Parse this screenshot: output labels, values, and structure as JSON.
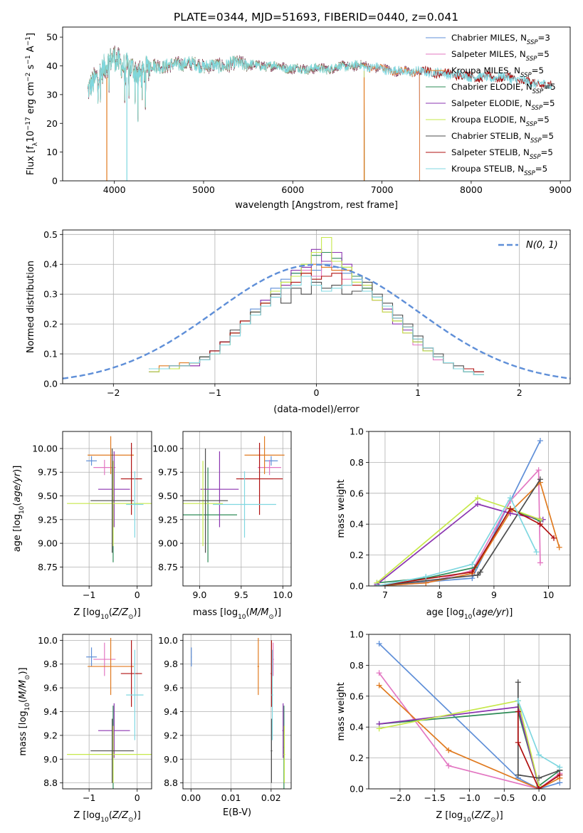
{
  "figure": {
    "title": "PLATE=0344, MJD=51693, FIBERID=0440, z=0.041"
  },
  "colors": {
    "Chabrier MILES": "#5f8fd8",
    "Salpeter MILES": "#e377c2",
    "Kroupa MILES": "#e07a1f",
    "Chabrier ELODIE": "#2e8b57",
    "Salpeter ELODIE": "#8b34b0",
    "Kroupa ELODIE": "#c6e84a",
    "Chabrier STELIB": "#4d4d4d",
    "Salpeter STELIB": "#b01010",
    "Kroupa STELIB": "#7fd7e0",
    "normal": "#5f8fd8",
    "grid": "#b0b0b0"
  },
  "chart_data": [
    {
      "id": "spectrum",
      "type": "line",
      "xlabel": "wavelength [Angstrom, rest frame]",
      "ylabel": "Flux [f_λ 10^-17 erg cm^-2 s^-1 A^-1]",
      "xlim": [
        3420,
        9110
      ],
      "ylim": [
        0,
        53.5
      ],
      "xticks": [
        4000,
        5000,
        6000,
        7000,
        8000,
        9000
      ],
      "yticks": [
        0,
        10,
        20,
        30,
        40,
        50
      ],
      "grid": false,
      "legend_position": "right",
      "legend": [
        {
          "model": "Chabrier MILES",
          "label": "Chabrier MILES, N",
          "sub": "SSP",
          "n": "=3"
        },
        {
          "model": "Salpeter MILES",
          "label": "Salpeter MILES, N",
          "sub": "SSP",
          "n": "=5"
        },
        {
          "model": "Kroupa MILES",
          "label": "Kroupa MILES, N",
          "sub": "SSP",
          "n": "=5"
        },
        {
          "model": "Chabrier ELODIE",
          "label": "Chabrier ELODIE, N",
          "sub": "SSP",
          "n": "=5"
        },
        {
          "model": "Salpeter ELODIE",
          "label": "Salpeter ELODIE, N",
          "sub": "SSP",
          "n": "=5"
        },
        {
          "model": "Kroupa ELODIE",
          "label": "Kroupa ELODIE, N",
          "sub": "SSP",
          "n": "=5"
        },
        {
          "model": "Chabrier STELIB",
          "label": "Chabrier STELIB, N",
          "sub": "SSP",
          "n": "=5"
        },
        {
          "model": "Salpeter STELIB",
          "label": "Salpeter STELIB, N",
          "sub": "SSP",
          "n": "=5"
        },
        {
          "model": "Kroupa STELIB",
          "label": "Kroupa STELIB, N",
          "sub": "SSP",
          "n": "=5"
        }
      ],
      "spectrum_anchors": {
        "wavelength": [
          3700,
          3800,
          3900,
          4000,
          4100,
          4200,
          4300,
          4400,
          4600,
          4800,
          5000,
          5200,
          5400,
          5600,
          5800,
          6000,
          6200,
          6400,
          6600,
          6800,
          7000,
          7200,
          7500,
          7800,
          8100,
          8400,
          8700,
          8900
        ],
        "flux": [
          31,
          36,
          40,
          43,
          40,
          39,
          37,
          40,
          40,
          41,
          40,
          40,
          41,
          40,
          40,
          39,
          39,
          39,
          40,
          40,
          39,
          38,
          38,
          37,
          36,
          36,
          34,
          33
        ]
      },
      "model_ranges": {
        "Chabrier MILES": [
          3700,
          7420
        ],
        "Salpeter MILES": [
          3700,
          7420
        ],
        "Kroupa MILES": [
          3700,
          7420
        ],
        "Chabrier ELODIE": [
          3700,
          6800
        ],
        "Salpeter ELODIE": [
          3700,
          6800
        ],
        "Kroupa ELODIE": [
          3700,
          6800
        ],
        "Chabrier STELIB": [
          3700,
          8900
        ],
        "Salpeter STELIB": [
          3700,
          8900
        ],
        "Kroupa STELIB": [
          3700,
          8900
        ]
      }
    },
    {
      "id": "residual-histogram",
      "type": "line",
      "xlabel": "(data-model)/error",
      "ylabel": "Normed distribution",
      "xlim": [
        -2.5,
        2.5
      ],
      "ylim": [
        0,
        0.515
      ],
      "xticks": [
        -2,
        -1,
        0,
        1,
        2
      ],
      "yticks": [
        0.0,
        0.1,
        0.2,
        0.3,
        0.4,
        0.5
      ],
      "grid": true,
      "legend_position": "top-right",
      "normal_label": "N(0, 1)",
      "bin_width": 0.1,
      "series": [
        {
          "model": "Chabrier MILES",
          "values": [
            0.05,
            0.05,
            0.06,
            0.06,
            0.07,
            0.09,
            0.11,
            0.14,
            0.17,
            0.21,
            0.25,
            0.28,
            0.32,
            0.35,
            0.37,
            0.39,
            0.38,
            0.4,
            0.39,
            0.37,
            0.35,
            0.32,
            0.29,
            0.25,
            0.22,
            0.18,
            0.15,
            0.12,
            0.09,
            0.07,
            0.05,
            0.04,
            0.03
          ]
        },
        {
          "model": "Salpeter MILES",
          "values": [
            0.04,
            0.05,
            0.05,
            0.06,
            0.06,
            0.08,
            0.1,
            0.13,
            0.16,
            0.2,
            0.24,
            0.27,
            0.31,
            0.34,
            0.36,
            0.38,
            0.36,
            0.41,
            0.38,
            0.35,
            0.36,
            0.31,
            0.28,
            0.24,
            0.21,
            0.17,
            0.13,
            0.11,
            0.08,
            0.07,
            0.05,
            0.04,
            0.03
          ]
        },
        {
          "model": "Kroupa MILES",
          "values": [
            0.05,
            0.06,
            0.06,
            0.07,
            0.07,
            0.09,
            0.1,
            0.13,
            0.17,
            0.21,
            0.24,
            0.27,
            0.3,
            0.33,
            0.36,
            0.37,
            0.4,
            0.39,
            0.38,
            0.38,
            0.34,
            0.32,
            0.28,
            0.26,
            0.21,
            0.19,
            0.15,
            0.12,
            0.09,
            0.07,
            0.05,
            0.04,
            0.03
          ]
        },
        {
          "model": "Chabrier ELODIE",
          "values": [
            0.04,
            0.05,
            0.05,
            0.06,
            0.07,
            0.09,
            0.11,
            0.14,
            0.17,
            0.2,
            0.23,
            0.27,
            0.3,
            0.34,
            0.37,
            0.4,
            0.43,
            0.44,
            0.42,
            0.39,
            0.36,
            0.32,
            0.29,
            0.25,
            0.21,
            0.18,
            0.14,
            0.11,
            0.09,
            0.07,
            0.05,
            0.04,
            0.03
          ]
        },
        {
          "model": "Salpeter ELODIE",
          "values": [
            0.04,
            0.05,
            0.05,
            0.06,
            0.06,
            0.08,
            0.11,
            0.14,
            0.17,
            0.21,
            0.24,
            0.28,
            0.3,
            0.33,
            0.38,
            0.39,
            0.45,
            0.41,
            0.44,
            0.4,
            0.35,
            0.33,
            0.28,
            0.25,
            0.2,
            0.18,
            0.14,
            0.11,
            0.09,
            0.07,
            0.05,
            0.04,
            0.03
          ]
        },
        {
          "model": "Kroupa ELODIE",
          "values": [
            0.04,
            0.05,
            0.05,
            0.06,
            0.07,
            0.08,
            0.1,
            0.13,
            0.17,
            0.21,
            0.24,
            0.27,
            0.31,
            0.34,
            0.36,
            0.4,
            0.44,
            0.49,
            0.41,
            0.39,
            0.34,
            0.33,
            0.28,
            0.24,
            0.21,
            0.17,
            0.14,
            0.11,
            0.09,
            0.07,
            0.05,
            0.04,
            0.03
          ]
        },
        {
          "model": "Chabrier STELIB",
          "values": [
            0.05,
            0.05,
            0.06,
            0.06,
            0.07,
            0.09,
            0.11,
            0.14,
            0.18,
            0.21,
            0.24,
            0.26,
            0.3,
            0.27,
            0.32,
            0.3,
            0.34,
            0.32,
            0.33,
            0.3,
            0.31,
            0.34,
            0.3,
            0.27,
            0.23,
            0.2,
            0.16,
            0.12,
            0.1,
            0.07,
            0.06,
            0.04,
            0.04
          ]
        },
        {
          "model": "Salpeter STELIB",
          "values": [
            0.05,
            0.05,
            0.06,
            0.06,
            0.07,
            0.08,
            0.11,
            0.14,
            0.17,
            0.21,
            0.23,
            0.27,
            0.29,
            0.32,
            0.34,
            0.37,
            0.35,
            0.36,
            0.37,
            0.33,
            0.33,
            0.31,
            0.29,
            0.26,
            0.22,
            0.19,
            0.15,
            0.12,
            0.09,
            0.07,
            0.05,
            0.05,
            0.04
          ]
        },
        {
          "model": "Kroupa STELIB",
          "values": [
            0.05,
            0.05,
            0.06,
            0.06,
            0.07,
            0.08,
            0.1,
            0.13,
            0.16,
            0.2,
            0.23,
            0.26,
            0.29,
            0.32,
            0.33,
            0.36,
            0.33,
            0.31,
            0.32,
            0.33,
            0.35,
            0.31,
            0.29,
            0.26,
            0.22,
            0.19,
            0.15,
            0.12,
            0.09,
            0.07,
            0.05,
            0.04,
            0.03
          ]
        }
      ]
    },
    {
      "id": "age-vs-Z",
      "type": "scatter",
      "xlabel": "Z [log10(Z/Z_sun)]",
      "ylabel": "age [log10(age/yr)]",
      "xlim": [
        -1.55,
        0.3
      ],
      "ylim": [
        8.55,
        10.18
      ],
      "xticks": [
        -1,
        0
      ],
      "yticks": [
        8.75,
        9.0,
        9.25,
        9.5,
        9.75,
        10.0
      ],
      "grid": true
    },
    {
      "id": "age-vs-mass",
      "type": "scatter",
      "xlabel": "mass [log10(M/M_sun)]",
      "ylabel": "",
      "xlim": [
        8.8,
        10.1
      ],
      "ylim": [
        8.55,
        10.18
      ],
      "xticks": [
        9.0,
        9.5,
        10.0
      ],
      "yticks": [
        8.75,
        9.0,
        9.25,
        9.5,
        9.75,
        10.0
      ],
      "grid": true
    },
    {
      "id": "mass-weight-vs-age",
      "type": "line",
      "xlabel": "age [log10(age/yr)]",
      "ylabel": "mass weight",
      "xlim": [
        6.7,
        10.4
      ],
      "ylim": [
        0.0,
        1.0
      ],
      "xticks": [
        7,
        8,
        9,
        10
      ],
      "yticks": [
        0.0,
        0.2,
        0.4,
        0.6,
        0.8,
        1.0
      ],
      "grid": true,
      "series": [
        {
          "model": "Chabrier MILES",
          "x": [
            6.85,
            8.6,
            9.85
          ],
          "y": [
            0.0,
            0.05,
            0.94
          ]
        },
        {
          "model": "Salpeter MILES",
          "x": [
            6.85,
            7.75,
            8.6,
            9.3,
            9.82,
            9.85
          ],
          "y": [
            0.0,
            0.02,
            0.1,
            0.55,
            0.75,
            0.15
          ]
        },
        {
          "model": "Kroupa MILES",
          "x": [
            6.85,
            7.75,
            8.6,
            9.3,
            9.85,
            10.2
          ],
          "y": [
            0.0,
            0.02,
            0.08,
            0.48,
            0.67,
            0.25
          ]
        },
        {
          "model": "Chabrier ELODIE",
          "x": [
            6.85,
            7.75,
            8.65,
            9.3,
            9.85
          ],
          "y": [
            0.02,
            0.05,
            0.12,
            0.5,
            0.42
          ]
        },
        {
          "model": "Salpeter ELODIE",
          "x": [
            6.85,
            8.7,
            9.3,
            9.9
          ],
          "y": [
            0.01,
            0.53,
            0.47,
            0.43
          ]
        },
        {
          "model": "Kroupa ELODIE",
          "x": [
            6.85,
            8.7,
            9.3,
            9.85
          ],
          "y": [
            0.02,
            0.57,
            0.5,
            0.43
          ]
        },
        {
          "model": "Chabrier STELIB",
          "x": [
            6.85,
            8.7,
            8.75,
            9.85
          ],
          "y": [
            0.0,
            0.07,
            0.09,
            0.69
          ]
        },
        {
          "model": "Salpeter STELIB",
          "x": [
            6.85,
            8.6,
            9.3,
            9.85,
            10.1
          ],
          "y": [
            0.0,
            0.09,
            0.5,
            0.4,
            0.31
          ]
        },
        {
          "model": "Kroupa STELIB",
          "x": [
            6.85,
            7.75,
            8.6,
            9.3,
            9.78
          ],
          "y": [
            0.0,
            0.06,
            0.14,
            0.57,
            0.22
          ]
        }
      ]
    },
    {
      "id": "mass-vs-Z",
      "type": "scatter",
      "xlabel": "Z [log10(Z/Z_sun)]",
      "ylabel": "mass [log10(M/M_sun)]",
      "xlim": [
        -1.55,
        0.3
      ],
      "ylim": [
        8.75,
        10.05
      ],
      "xticks": [
        -1,
        0
      ],
      "yticks": [
        8.8,
        9.0,
        9.2,
        9.4,
        9.6,
        9.8,
        10.0
      ],
      "grid": true
    },
    {
      "id": "mass-vs-ebv",
      "type": "scatter",
      "xlabel": "E(B-V)",
      "ylabel": "",
      "xlim": [
        -0.002,
        0.025
      ],
      "ylim": [
        8.75,
        10.05
      ],
      "xticks": [
        0.0,
        0.01,
        0.02
      ],
      "yticks": [
        8.8,
        9.0,
        9.2,
        9.4,
        9.6,
        9.8,
        10.0
      ],
      "grid": true
    },
    {
      "id": "mass-weight-vs-Z",
      "type": "line",
      "xlabel": "Z [log10(Z/Z_sun)]",
      "ylabel": "mass weight",
      "xlim": [
        -2.45,
        0.45
      ],
      "ylim": [
        0.0,
        1.0
      ],
      "xticks": [
        -2.0,
        -1.5,
        -1.0,
        -0.5,
        0.0
      ],
      "yticks": [
        0.0,
        0.2,
        0.4,
        0.6,
        0.8,
        1.0
      ],
      "grid": true,
      "series": [
        {
          "model": "Chabrier MILES",
          "x": [
            -2.3,
            -0.3,
            0.0,
            0.3
          ],
          "y": [
            0.94,
            0.07,
            0.0,
            0.04
          ]
        },
        {
          "model": "Salpeter MILES",
          "x": [
            -2.3,
            -1.3,
            0.0,
            0.3
          ],
          "y": [
            0.75,
            0.15,
            0.0,
            0.1
          ]
        },
        {
          "model": "Kroupa MILES",
          "x": [
            -2.3,
            -1.3,
            0.0,
            0.3
          ],
          "y": [
            0.67,
            0.25,
            0.0,
            0.07
          ]
        },
        {
          "model": "Chabrier ELODIE",
          "x": [
            -2.3,
            -0.3,
            0.0,
            0.3
          ],
          "y": [
            0.42,
            0.5,
            0.02,
            0.12
          ]
        },
        {
          "model": "Salpeter ELODIE",
          "x": [
            -2.3,
            -0.3,
            0.0
          ],
          "y": [
            0.42,
            0.53,
            0.01
          ]
        },
        {
          "model": "Kroupa ELODIE",
          "x": [
            -2.3,
            -0.3,
            0.0
          ],
          "y": [
            0.39,
            0.57,
            0.02
          ]
        },
        {
          "model": "Chabrier STELIB",
          "x": [
            -0.3,
            -0.3,
            0.0,
            0.3
          ],
          "y": [
            0.69,
            0.09,
            0.07,
            0.12
          ]
        },
        {
          "model": "Salpeter STELIB",
          "x": [
            -0.3,
            -0.3,
            0.0,
            0.3
          ],
          "y": [
            0.5,
            0.3,
            0.0,
            0.09
          ]
        },
        {
          "model": "Kroupa STELIB",
          "x": [
            -0.3,
            0.0,
            0.3
          ],
          "y": [
            0.57,
            0.22,
            0.14
          ]
        }
      ]
    }
  ],
  "average_points": [
    {
      "model": "Chabrier MILES",
      "Z": -0.95,
      "Z_err": 0.11,
      "age": 9.87,
      "age_err": 0.05,
      "mass": 9.86,
      "mass_err": 0.08,
      "ebv": 0.0001,
      "ebv_err": 0.0001
    },
    {
      "model": "Salpeter MILES",
      "Z": -0.68,
      "Z_err": 0.23,
      "age": 9.8,
      "age_err": 0.08,
      "mass": 9.84,
      "mass_err": 0.14,
      "ebv": 0.0205,
      "ebv_err": 0.0002
    },
    {
      "model": "Kroupa MILES",
      "Z": -0.55,
      "Z_err": 0.48,
      "age": 9.93,
      "age_err": 0.2,
      "mass": 9.78,
      "mass_err": 0.24,
      "ebv": 0.0168,
      "ebv_err": 0.0002
    },
    {
      "model": "Chabrier ELODIE",
      "Z": -0.5,
      "Z_err": 0.0,
      "age": 9.3,
      "age_err": 0.5,
      "mass": 9.1,
      "mass_err": 0.35,
      "ebv": 0.0232,
      "ebv_err": 0.0002
    },
    {
      "model": "Salpeter ELODIE",
      "Z": -0.48,
      "Z_err": 0.33,
      "age": 9.57,
      "age_err": 0.4,
      "mass": 9.24,
      "mass_err": 0.23,
      "ebv": 0.023,
      "ebv_err": 0.0002
    },
    {
      "model": "Kroupa ELODIE",
      "Z": -0.5,
      "Z_err": 0.96,
      "age": 9.42,
      "age_err": 0.45,
      "mass": 9.04,
      "mass_err": 0.24,
      "ebv": 0.0233,
      "ebv_err": 0.0002
    },
    {
      "model": "Chabrier STELIB",
      "Z": -0.52,
      "Z_err": 0.45,
      "age": 9.45,
      "age_err": 0.55,
      "mass": 9.07,
      "mass_err": 0.27,
      "ebv": 0.0201,
      "ebv_err": 0.0002
    },
    {
      "model": "Salpeter STELIB",
      "Z": -0.12,
      "Z_err": 0.22,
      "age": 9.68,
      "age_err": 0.38,
      "mass": 9.72,
      "mass_err": 0.28,
      "ebv": 0.0201,
      "ebv_err": 0.0002
    },
    {
      "model": "Kroupa STELIB",
      "Z": -0.05,
      "Z_err": 0.18,
      "age": 9.41,
      "age_err": 0.35,
      "mass": 9.54,
      "mass_err": 0.38,
      "ebv": 0.0203,
      "ebv_err": 0.0002
    }
  ]
}
